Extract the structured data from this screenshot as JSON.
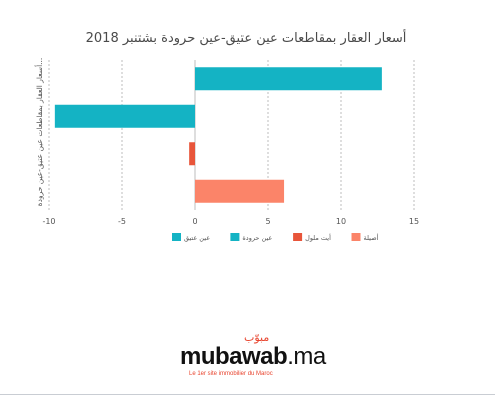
{
  "chart_data": {
    "type": "bar",
    "orientation": "horizontal",
    "title": "أسعار العقار بمقاطعات عين عتيق-عين حرودة بشتنبر 2018",
    "ylabel": "...أسعار العقار بمقاطعات عين عتيق-عين حرودة",
    "xlabel": "",
    "xlim": [
      -10,
      15
    ],
    "xticks": [
      "-10",
      "-5",
      "0",
      "5",
      "10",
      "15"
    ],
    "grid": true,
    "legend_position": "bottom",
    "series": [
      {
        "name": "عين عتيق",
        "value": 12.8,
        "color": "#14b3c4"
      },
      {
        "name": "عين حرودة",
        "value": -9.6,
        "color": "#14b3c4"
      },
      {
        "name": "أيت ملول",
        "value": -0.4,
        "color": "#e8553a"
      },
      {
        "name": "أصيلة",
        "value": 6.1,
        "color": "#fb8469"
      }
    ]
  },
  "brand": {
    "arabic": "مبوّب",
    "name": "mubawab",
    "suffix": ".ma",
    "tagline": "Le 1er site immobilier du Maroc"
  }
}
